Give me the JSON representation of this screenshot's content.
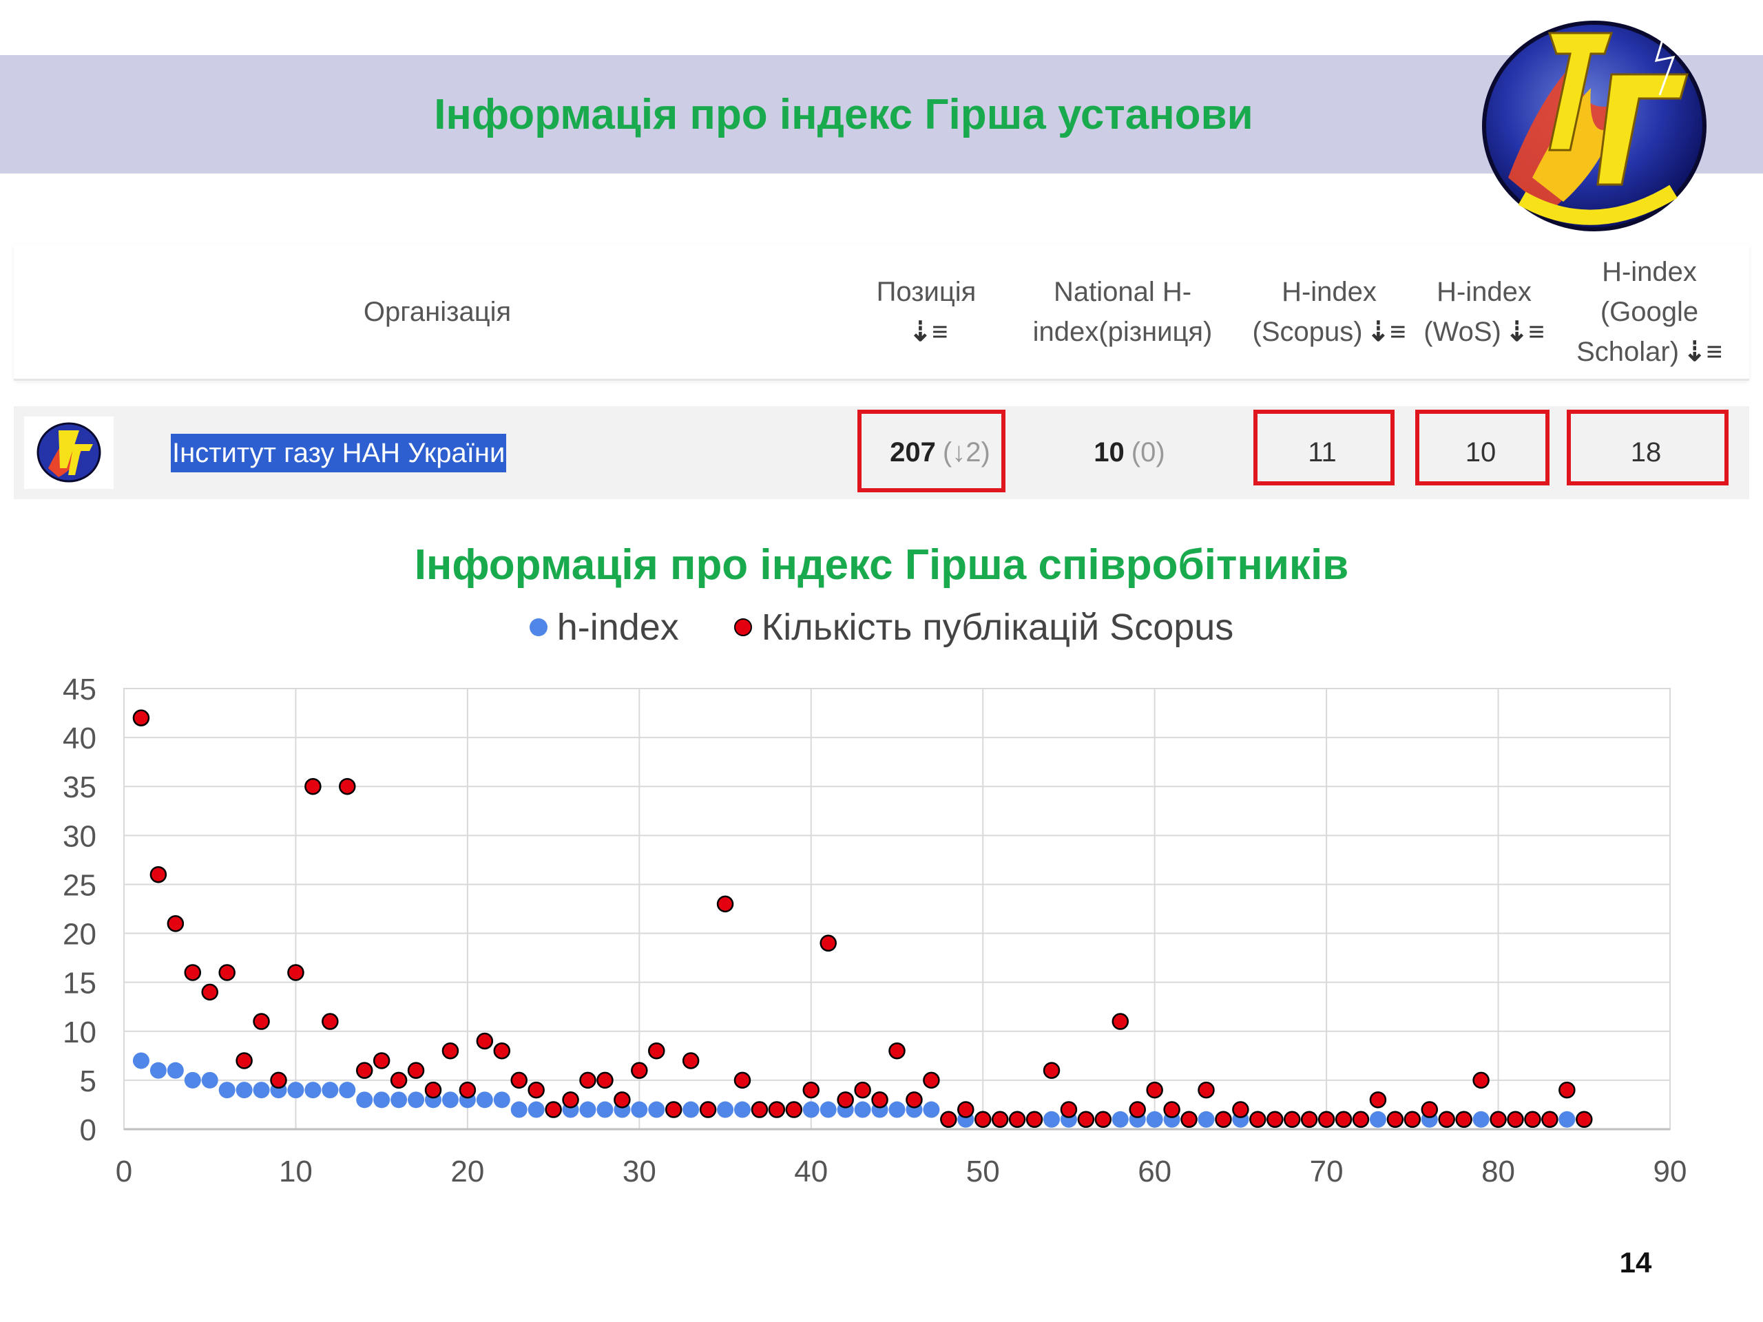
{
  "slide": {
    "title": "Інформація про індекс Гірша установи",
    "chart_title": "Інформація про індекс Гірша співробітників",
    "page_number": "14"
  },
  "table": {
    "headers": {
      "org": "Організація",
      "position": "Позиція",
      "national_1": "National H-",
      "national_2": "index(різниця)",
      "scopus_1": "H-index",
      "scopus_2": "(Scopus)",
      "wos_1": "H-index",
      "wos_2": "(WoS)",
      "gs_1": "H-index",
      "gs_2": "(Google",
      "gs_3": "Scholar)"
    },
    "row": {
      "org_name": "Інститут газу НАН України",
      "position": "207",
      "position_change": "(↓2)",
      "national": "10",
      "national_change": "(0)",
      "scopus": "11",
      "wos": "10",
      "google_scholar": "18"
    }
  },
  "colors": {
    "title_green": "#1aaa4e",
    "banner": "#cdcde6",
    "highlight_box": "#e0161f",
    "h_index": "#4f86e8",
    "scopus_pubs": "#e3000f"
  },
  "chart_data": {
    "type": "scatter",
    "title": "Інформація про індекс Гірша співробітників",
    "xlim": [
      0,
      90
    ],
    "ylim": [
      0,
      45
    ],
    "x_ticks": [
      0,
      10,
      20,
      30,
      40,
      50,
      60,
      70,
      80,
      90
    ],
    "y_ticks": [
      0,
      5,
      10,
      15,
      20,
      25,
      30,
      35,
      40,
      45
    ],
    "grid": true,
    "legend_position": "top",
    "series": [
      {
        "name": "h-index",
        "color": "#4f86e8",
        "values": [
          7,
          6,
          6,
          5,
          5,
          4,
          4,
          4,
          4,
          4,
          4,
          4,
          4,
          3,
          3,
          3,
          3,
          3,
          3,
          3,
          3,
          3,
          2,
          2,
          2,
          2,
          2,
          2,
          2,
          2,
          2,
          2,
          2,
          2,
          2,
          2,
          2,
          2,
          2,
          2,
          2,
          2,
          2,
          2,
          2,
          2,
          2,
          1,
          1,
          1,
          1,
          1,
          1,
          1,
          1,
          1,
          1,
          1,
          1,
          1,
          1,
          1,
          1,
          1,
          1,
          1,
          1,
          1,
          1,
          1,
          1,
          1,
          1,
          1,
          1,
          1,
          1,
          1,
          1,
          1,
          1,
          1,
          1,
          1,
          1
        ]
      },
      {
        "name": "Кількість публікацій Scopus",
        "color": "#e3000f",
        "values": [
          42,
          26,
          21,
          16,
          14,
          16,
          7,
          11,
          5,
          16,
          35,
          11,
          35,
          6,
          7,
          5,
          6,
          4,
          8,
          4,
          9,
          8,
          5,
          4,
          2,
          3,
          5,
          5,
          3,
          6,
          8,
          2,
          7,
          2,
          23,
          5,
          2,
          2,
          2,
          4,
          19,
          3,
          4,
          3,
          8,
          3,
          5,
          1,
          2,
          1,
          1,
          1,
          1,
          6,
          2,
          1,
          1,
          11,
          2,
          4,
          2,
          1,
          4,
          1,
          2,
          1,
          1,
          1,
          1,
          1,
          1,
          1,
          3,
          1,
          1,
          2,
          1,
          1,
          5,
          1,
          1,
          1,
          1,
          4,
          1
        ]
      }
    ]
  }
}
